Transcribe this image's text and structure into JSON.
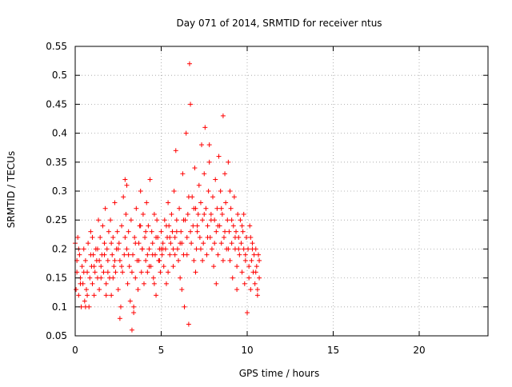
{
  "chart_data": {
    "type": "scatter",
    "title": "Day 071 of 2014, SRMTID for receiver ntus",
    "xlabel": "GPS time / hours",
    "ylabel": "SRMTID / TECUs",
    "xlim": [
      0,
      24
    ],
    "ylim": [
      0.05,
      0.55
    ],
    "xticks": [
      0,
      5,
      10,
      15,
      20
    ],
    "xtick_labels": [
      "0",
      "5",
      "10",
      "15",
      "20"
    ],
    "yticks": [
      0.05,
      0.1,
      0.15,
      0.2,
      0.25,
      0.3,
      0.35,
      0.4,
      0.45,
      0.5,
      0.55
    ],
    "ytick_labels": [
      "0.05",
      "0.1",
      "0.15",
      "0.2",
      "0.25",
      "0.3",
      "0.35",
      "0.4",
      "0.45",
      "0.5",
      "0.55"
    ],
    "grid": true,
    "marker": "plus",
    "color": "#ff0000",
    "series": [
      {
        "name": "SRMTID",
        "points": [
          [
            0.0,
            0.21
          ],
          [
            0.05,
            0.13
          ],
          [
            0.1,
            0.16
          ],
          [
            0.15,
            0.22
          ],
          [
            0.2,
            0.12
          ],
          [
            0.25,
            0.19
          ],
          [
            0.3,
            0.15
          ],
          [
            0.35,
            0.1
          ],
          [
            0.4,
            0.17
          ],
          [
            0.45,
            0.14
          ],
          [
            0.5,
            0.2
          ],
          [
            0.55,
            0.11
          ],
          [
            0.6,
            0.18
          ],
          [
            0.65,
            0.13
          ],
          [
            0.7,
            0.16
          ],
          [
            0.75,
            0.21
          ],
          [
            0.8,
            0.1
          ],
          [
            0.85,
            0.15
          ],
          [
            0.9,
            0.23
          ],
          [
            0.95,
            0.17
          ],
          [
            1.0,
            0.14
          ],
          [
            1.05,
            0.19
          ],
          [
            1.1,
            0.12
          ],
          [
            1.15,
            0.16
          ],
          [
            1.2,
            0.2
          ],
          [
            1.25,
            0.18
          ],
          [
            1.3,
            0.15
          ],
          [
            1.35,
            0.25
          ],
          [
            1.4,
            0.13
          ],
          [
            1.45,
            0.22
          ],
          [
            1.5,
            0.17
          ],
          [
            1.55,
            0.19
          ],
          [
            1.6,
            0.24
          ],
          [
            1.65,
            0.16
          ],
          [
            1.7,
            0.21
          ],
          [
            1.75,
            0.27
          ],
          [
            1.8,
            0.14
          ],
          [
            1.85,
            0.2
          ],
          [
            1.9,
            0.18
          ],
          [
            1.95,
            0.23
          ],
          [
            2.0,
            0.15
          ],
          [
            2.05,
            0.25
          ],
          [
            2.1,
            0.12
          ],
          [
            2.15,
            0.19
          ],
          [
            2.2,
            0.22
          ],
          [
            2.25,
            0.17
          ],
          [
            2.3,
            0.28
          ],
          [
            2.35,
            0.16
          ],
          [
            2.4,
            0.2
          ],
          [
            2.45,
            0.23
          ],
          [
            2.5,
            0.13
          ],
          [
            2.55,
            0.21
          ],
          [
            2.6,
            0.18
          ],
          [
            2.65,
            0.1
          ],
          [
            2.7,
            0.24
          ],
          [
            2.75,
            0.16
          ],
          [
            2.8,
            0.29
          ],
          [
            2.85,
            0.19
          ],
          [
            2.9,
            0.32
          ],
          [
            2.95,
            0.26
          ],
          [
            3.0,
            0.2
          ],
          [
            3.05,
            0.14
          ],
          [
            3.1,
            0.23
          ],
          [
            3.15,
            0.17
          ],
          [
            3.2,
            0.11
          ],
          [
            3.25,
            0.25
          ],
          [
            3.3,
            0.06
          ],
          [
            3.35,
            0.19
          ],
          [
            3.4,
            0.09
          ],
          [
            3.45,
            0.22
          ],
          [
            3.5,
            0.15
          ],
          [
            3.55,
            0.27
          ],
          [
            3.6,
            0.18
          ],
          [
            3.65,
            0.13
          ],
          [
            3.7,
            0.21
          ],
          [
            3.75,
            0.24
          ],
          [
            3.8,
            0.3
          ],
          [
            3.85,
            0.16
          ],
          [
            3.9,
            0.2
          ],
          [
            3.95,
            0.26
          ],
          [
            4.0,
            0.14
          ],
          [
            4.05,
            0.22
          ],
          [
            4.1,
            0.18
          ],
          [
            4.15,
            0.28
          ],
          [
            4.2,
            0.16
          ],
          [
            4.25,
            0.24
          ],
          [
            4.3,
            0.2
          ],
          [
            4.35,
            0.32
          ],
          [
            4.4,
            0.17
          ],
          [
            4.45,
            0.23
          ],
          [
            4.5,
            0.21
          ],
          [
            4.55,
            0.15
          ],
          [
            4.6,
            0.26
          ],
          [
            4.65,
            0.19
          ],
          [
            4.7,
            0.12
          ],
          [
            4.75,
            0.25
          ],
          [
            4.8,
            0.22
          ],
          [
            4.85,
            0.18
          ],
          [
            4.9,
            0.2
          ],
          [
            4.95,
            0.16
          ],
          [
            5.0,
            0.23
          ],
          [
            5.05,
            0.19
          ],
          [
            5.1,
            0.21
          ],
          [
            5.15,
            0.17
          ],
          [
            5.2,
            0.25
          ],
          [
            5.25,
            0.2
          ],
          [
            5.3,
            0.14
          ],
          [
            5.35,
            0.22
          ],
          [
            5.4,
            0.28
          ],
          [
            5.45,
            0.24
          ],
          [
            5.5,
            0.19
          ],
          [
            5.55,
            0.21
          ],
          [
            5.6,
            0.26
          ],
          [
            5.65,
            0.23
          ],
          [
            5.7,
            0.17
          ],
          [
            5.75,
            0.3
          ],
          [
            5.8,
            0.22
          ],
          [
            5.85,
            0.37
          ],
          [
            5.9,
            0.25
          ],
          [
            5.95,
            0.2
          ],
          [
            6.0,
            0.18
          ],
          [
            6.05,
            0.27
          ],
          [
            6.1,
            0.15
          ],
          [
            6.15,
            0.23
          ],
          [
            6.2,
            0.21
          ],
          [
            6.25,
            0.33
          ],
          [
            6.3,
            0.19
          ],
          [
            6.35,
            0.1
          ],
          [
            6.4,
            0.25
          ],
          [
            6.45,
            0.4
          ],
          [
            6.5,
            0.22
          ],
          [
            6.55,
            0.26
          ],
          [
            6.6,
            0.07
          ],
          [
            6.65,
            0.52
          ],
          [
            6.7,
            0.45
          ],
          [
            6.75,
            0.21
          ],
          [
            6.8,
            0.29
          ],
          [
            6.85,
            0.24
          ],
          [
            6.9,
            0.18
          ],
          [
            6.95,
            0.34
          ],
          [
            7.0,
            0.27
          ],
          [
            7.05,
            0.2
          ],
          [
            7.1,
            0.23
          ],
          [
            7.15,
            0.26
          ],
          [
            7.2,
            0.31
          ],
          [
            7.25,
            0.22
          ],
          [
            7.3,
            0.28
          ],
          [
            7.35,
            0.38
          ],
          [
            7.4,
            0.25
          ],
          [
            7.45,
            0.21
          ],
          [
            7.5,
            0.33
          ],
          [
            7.55,
            0.41
          ],
          [
            7.6,
            0.27
          ],
          [
            7.65,
            0.19
          ],
          [
            7.7,
            0.24
          ],
          [
            7.75,
            0.3
          ],
          [
            7.8,
            0.35
          ],
          [
            7.85,
            0.22
          ],
          [
            7.9,
            0.26
          ],
          [
            7.95,
            0.2
          ],
          [
            8.0,
            0.29
          ],
          [
            8.05,
            0.17
          ],
          [
            8.1,
            0.25
          ],
          [
            8.15,
            0.32
          ],
          [
            8.2,
            0.23
          ],
          [
            8.25,
            0.27
          ],
          [
            8.3,
            0.19
          ],
          [
            8.35,
            0.36
          ],
          [
            8.4,
            0.24
          ],
          [
            8.45,
            0.3
          ],
          [
            8.5,
            0.21
          ],
          [
            8.55,
            0.26
          ],
          [
            8.6,
            0.43
          ],
          [
            8.65,
            0.22
          ],
          [
            8.7,
            0.33
          ],
          [
            8.75,
            0.28
          ],
          [
            8.8,
            0.2
          ],
          [
            8.85,
            0.25
          ],
          [
            8.9,
            0.35
          ],
          [
            8.95,
            0.23
          ],
          [
            9.0,
            0.18
          ],
          [
            9.05,
            0.27
          ],
          [
            9.1,
            0.21
          ],
          [
            9.15,
            0.15
          ],
          [
            9.2,
            0.24
          ],
          [
            9.25,
            0.29
          ],
          [
            9.3,
            0.2
          ],
          [
            9.35,
            0.23
          ],
          [
            9.4,
            0.17
          ],
          [
            9.45,
            0.26
          ],
          [
            9.5,
            0.22
          ],
          [
            9.55,
            0.19
          ],
          [
            9.6,
            0.25
          ],
          [
            9.65,
            0.21
          ],
          [
            9.7,
            0.16
          ],
          [
            9.75,
            0.23
          ],
          [
            9.8,
            0.2
          ],
          [
            9.85,
            0.14
          ],
          [
            9.9,
            0.18
          ],
          [
            9.95,
            0.22
          ],
          [
            10.0,
            0.09
          ],
          [
            10.05,
            0.2
          ],
          [
            10.1,
            0.15
          ],
          [
            10.15,
            0.24
          ],
          [
            10.2,
            0.13
          ],
          [
            10.25,
            0.18
          ],
          [
            10.3,
            0.21
          ],
          [
            10.35,
            0.16
          ],
          [
            10.4,
            0.19
          ],
          [
            10.45,
            0.14
          ],
          [
            10.5,
            0.2
          ],
          [
            10.55,
            0.17
          ],
          [
            10.6,
            0.13
          ],
          [
            10.65,
            0.19
          ],
          [
            10.7,
            0.15
          ],
          [
            0.1,
            0.18
          ],
          [
            0.3,
            0.14
          ],
          [
            0.5,
            0.16
          ],
          [
            0.7,
            0.12
          ],
          [
            0.9,
            0.19
          ],
          [
            1.1,
            0.17
          ],
          [
            1.3,
            0.2
          ],
          [
            1.5,
            0.15
          ],
          [
            1.7,
            0.19
          ],
          [
            1.9,
            0.16
          ],
          [
            2.1,
            0.21
          ],
          [
            2.3,
            0.18
          ],
          [
            2.5,
            0.2
          ],
          [
            2.7,
            0.17
          ],
          [
            2.9,
            0.22
          ],
          [
            3.1,
            0.19
          ],
          [
            3.3,
            0.16
          ],
          [
            3.5,
            0.21
          ],
          [
            3.7,
            0.18
          ],
          [
            3.9,
            0.2
          ],
          [
            4.1,
            0.23
          ],
          [
            4.3,
            0.17
          ],
          [
            4.5,
            0.19
          ],
          [
            4.7,
            0.22
          ],
          [
            4.9,
            0.18
          ],
          [
            5.1,
            0.2
          ],
          [
            5.3,
            0.24
          ],
          [
            5.5,
            0.22
          ],
          [
            5.7,
            0.2
          ],
          [
            5.9,
            0.23
          ],
          [
            6.1,
            0.21
          ],
          [
            6.3,
            0.25
          ],
          [
            6.5,
            0.19
          ],
          [
            6.7,
            0.23
          ],
          [
            6.9,
            0.27
          ],
          [
            7.1,
            0.24
          ],
          [
            7.3,
            0.2
          ],
          [
            7.5,
            0.26
          ],
          [
            7.7,
            0.22
          ],
          [
            7.9,
            0.25
          ],
          [
            8.1,
            0.21
          ],
          [
            8.3,
            0.24
          ],
          [
            8.5,
            0.27
          ],
          [
            8.7,
            0.23
          ],
          [
            8.9,
            0.2
          ],
          [
            9.1,
            0.25
          ],
          [
            9.3,
            0.22
          ],
          [
            9.5,
            0.2
          ],
          [
            9.7,
            0.24
          ],
          [
            9.9,
            0.19
          ],
          [
            10.1,
            0.17
          ],
          [
            10.3,
            0.2
          ],
          [
            10.5,
            0.16
          ],
          [
            10.7,
            0.18
          ],
          [
            0.2,
            0.2
          ],
          [
            0.6,
            0.1
          ],
          [
            1.0,
            0.22
          ],
          [
            1.4,
            0.18
          ],
          [
            1.8,
            0.12
          ],
          [
            2.2,
            0.15
          ],
          [
            2.6,
            0.08
          ],
          [
            3.0,
            0.31
          ],
          [
            3.4,
            0.1
          ],
          [
            3.8,
            0.24
          ],
          [
            4.2,
            0.19
          ],
          [
            4.6,
            0.14
          ],
          [
            5.0,
            0.2
          ],
          [
            5.4,
            0.16
          ],
          [
            5.8,
            0.19
          ],
          [
            6.2,
            0.13
          ],
          [
            6.6,
            0.29
          ],
          [
            7.0,
            0.16
          ],
          [
            7.4,
            0.18
          ],
          [
            7.8,
            0.38
          ],
          [
            8.2,
            0.14
          ],
          [
            8.6,
            0.18
          ],
          [
            9.0,
            0.3
          ],
          [
            9.4,
            0.13
          ],
          [
            9.8,
            0.26
          ],
          [
            10.2,
            0.22
          ],
          [
            10.6,
            0.12
          ]
        ]
      }
    ]
  }
}
